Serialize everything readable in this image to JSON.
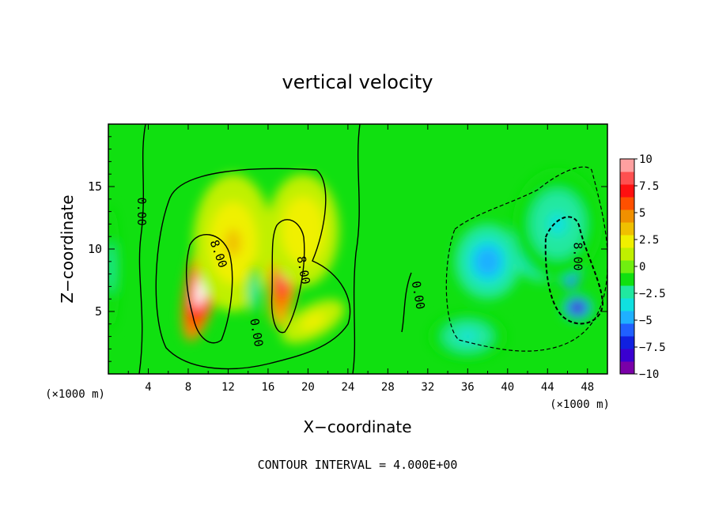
{
  "chart_data": {
    "type": "heatmap",
    "title": "vertical velocity",
    "xlabel": "X−coordinate",
    "ylabel": "Z−coordinate",
    "x_unit_left": "(×1000 m)",
    "x_unit_right": "(×1000 m)",
    "footer": "CONTOUR INTERVAL = 4.000E+00",
    "xlim": [
      0,
      50
    ],
    "ylim": [
      0,
      20
    ],
    "x_ticks": [
      4,
      8,
      12,
      16,
      20,
      24,
      28,
      32,
      36,
      40,
      44,
      48
    ],
    "y_ticks": [
      5,
      10,
      15
    ],
    "colorbar": {
      "range": [
        -10,
        10
      ],
      "ticks": [
        "10",
        "7.5",
        "5",
        "2.5",
        "0",
        "−2.5",
        "−5",
        "−7.5",
        "−10"
      ],
      "tick_values": [
        10,
        7.5,
        5,
        2.5,
        0,
        -2.5,
        -5,
        -7.5,
        -10
      ],
      "colors": [
        "#7a00a8",
        "#3a00d0",
        "#1020e0",
        "#2060ff",
        "#1fb0ff",
        "#10e0e0",
        "#20e8a0",
        "#10e010",
        "#70ee10",
        "#c0f000",
        "#f0f000",
        "#f0c000",
        "#f09000",
        "#ff5000",
        "#ff1010",
        "#ff5050",
        "#ffa0a0"
      ]
    },
    "contour_labels": [
      {
        "text": "0.00",
        "x": 3.3,
        "z": 13.0,
        "rotate": 90
      },
      {
        "text": "8.00",
        "x": 11.0,
        "z": 9.6,
        "rotate": 70
      },
      {
        "text": "0.00",
        "x": 14.8,
        "z": 3.3,
        "rotate": 80
      },
      {
        "text": "8.00",
        "x": 19.5,
        "z": 8.3,
        "rotate": 80
      },
      {
        "text": "0.00",
        "x": 31.0,
        "z": 6.3,
        "rotate": 80
      },
      {
        "text": "8.00",
        "x": 47.0,
        "z": 9.4,
        "rotate": 90
      }
    ],
    "features": [
      {
        "value": 10.5,
        "x": 9.5,
        "z": 7.5,
        "sx": 1.7,
        "sz": 5.0,
        "tilt": 0.22
      },
      {
        "value": 9.0,
        "x": 17.6,
        "z": 8.3,
        "sx": 1.5,
        "sz": 4.6,
        "tilt": 0.1
      },
      {
        "value": 3.2,
        "x": 12.5,
        "z": 10.5,
        "sx": 4.0,
        "sz": 5.5,
        "tilt": 0
      },
      {
        "value": 2.8,
        "x": 19.5,
        "z": 11.5,
        "sx": 3.6,
        "sz": 4.5,
        "tilt": 0
      },
      {
        "value": 2.5,
        "x": 20.5,
        "z": 4.2,
        "sx": 3.5,
        "sz": 1.3,
        "tilt": -0.5
      },
      {
        "value": -3.0,
        "x": 14.6,
        "z": 6.6,
        "sx": 0.6,
        "sz": 2.2,
        "tilt": 0
      },
      {
        "value": -2.2,
        "x": 0.3,
        "z": 8.5,
        "sx": 0.9,
        "sz": 5.0,
        "tilt": 0
      },
      {
        "value": -5.0,
        "x": 38.0,
        "z": 9.0,
        "sx": 3.3,
        "sz": 3.0,
        "tilt": 0
      },
      {
        "value": -7.0,
        "x": 43.5,
        "z": 10.2,
        "sx": 3.2,
        "sz": 2.8,
        "tilt": 0
      },
      {
        "value": -10.5,
        "x": 46.3,
        "z": 9.0,
        "sx": 1.1,
        "sz": 2.2,
        "tilt": 0
      },
      {
        "value": -9.5,
        "x": 47.0,
        "z": 5.3,
        "sx": 1.5,
        "sz": 1.0,
        "tilt": 0
      },
      {
        "value": -3.0,
        "x": 45.0,
        "z": 12.0,
        "sx": 4.5,
        "sz": 4.5,
        "tilt": 0
      },
      {
        "value": -3.0,
        "x": 36.0,
        "z": 3.0,
        "sx": 4.0,
        "sz": 2.0,
        "tilt": 0
      }
    ]
  }
}
